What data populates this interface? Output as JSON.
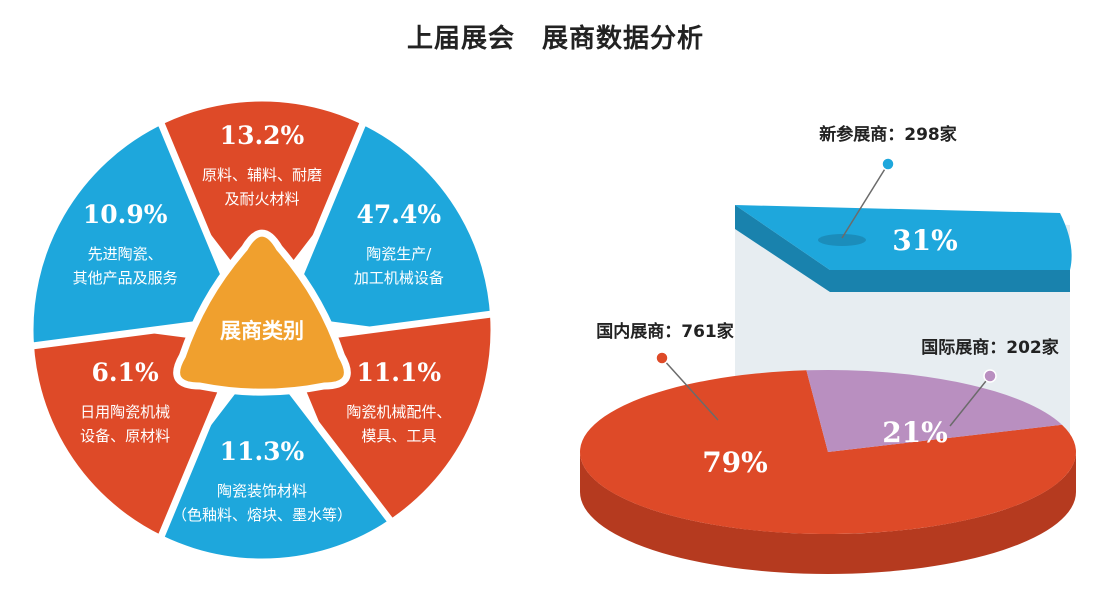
{
  "header": {
    "title": "上届展会　展商数据分析"
  },
  "colors": {
    "red": "#de4a28",
    "blue": "#1ea7dc",
    "orange": "#f0a02e",
    "lavender": "#b98fc0",
    "redDark": "#b53a1f",
    "blueDark": "#1982ad",
    "wall": "#e7edf1"
  },
  "chart_data": [
    {
      "type": "pie",
      "center_label": "展商类别",
      "categories": [
        {
          "value": 13.2,
          "label": "13.2%",
          "lines": [
            "原料、辅料、耐磨",
            "及耐火材料"
          ],
          "color": "red"
        },
        {
          "value": 47.4,
          "label": "47.4%",
          "lines": [
            "陶瓷生产/",
            "加工机械设备"
          ],
          "color": "blue"
        },
        {
          "value": 11.1,
          "label": "11.1%",
          "lines": [
            "陶瓷机械配件、",
            "模具、工具"
          ],
          "color": "red"
        },
        {
          "value": 11.3,
          "label": "11.3%",
          "lines": [
            "陶瓷装饰材料",
            "（色釉料、熔块、墨水等）"
          ],
          "color": "blue"
        },
        {
          "value": 6.1,
          "label": "6.1%",
          "lines": [
            "日用陶瓷机械",
            "设备、原材料"
          ],
          "color": "red"
        },
        {
          "value": 10.9,
          "label": "10.9%",
          "lines": [
            "先进陶瓷、",
            "其他产品及服务"
          ],
          "color": "blue"
        }
      ]
    },
    {
      "type": "pie",
      "slices": [
        {
          "name": "国内展商：761家",
          "value": 79,
          "label": "79%",
          "color": "red"
        },
        {
          "name": "国际展商：202家",
          "value": 21,
          "label": "21%",
          "color": "lavender"
        }
      ],
      "new_exhibitors": {
        "name": "新参展商：298家",
        "value": 31,
        "label": "31%",
        "color": "blue"
      }
    }
  ]
}
